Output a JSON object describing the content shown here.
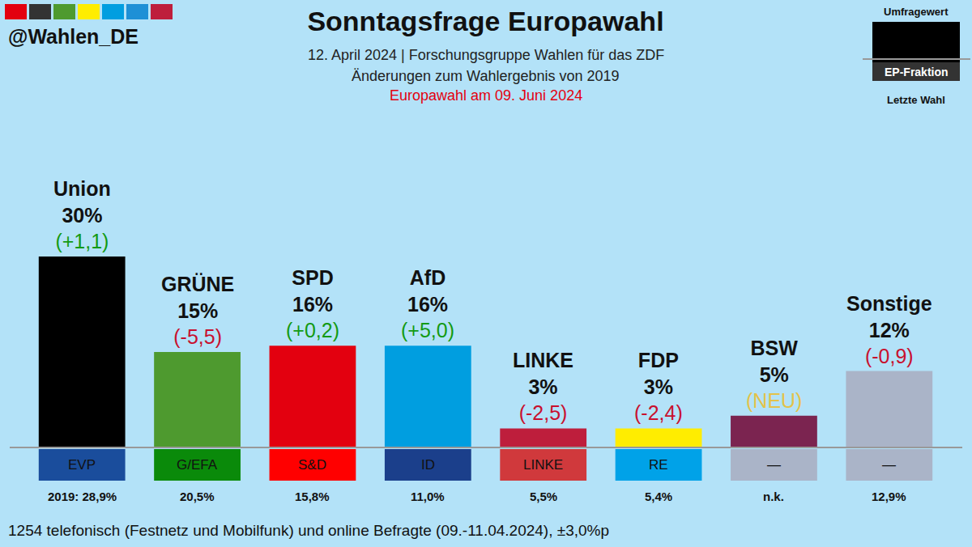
{
  "chart_data": {
    "type": "bar",
    "title": "Sonntagsfrage Europawahl",
    "handle": "@Wahlen_DE",
    "subtitle": [
      "12. April 2024 | Forschungsgruppe Wahlen für das ZDF",
      "Änderungen zum Wahlergebnis von 2019"
    ],
    "election_note": "Europawahl am 09. Juni 2024",
    "categories": [
      "Union",
      "GRÜNE",
      "SPD",
      "AfD",
      "LINKE",
      "FDP",
      "BSW",
      "Sonstige"
    ],
    "values": [
      30,
      15,
      16,
      16,
      3,
      3,
      5,
      12
    ],
    "value_labels": [
      "30%",
      "15%",
      "16%",
      "16%",
      "3%",
      "3%",
      "5%",
      "12%"
    ],
    "colors": [
      "#000000",
      "#4e9a2f",
      "#e3000f",
      "#009ee0",
      "#be1e3c",
      "#ffed00",
      "#7b2450",
      "#aab4c8"
    ],
    "changes": [
      "(+1,1)",
      "(-5,5)",
      "(+0,2)",
      "(+5,0)",
      "(-2,5)",
      "(-2,4)",
      "(NEU)",
      "(-0,9)"
    ],
    "change_colors": [
      "#139a13",
      "#c8102e",
      "#139a13",
      "#139a13",
      "#c8102e",
      "#c8102e",
      "#e3c24a",
      "#c8102e"
    ],
    "factions": [
      "EVP",
      "G/EFA",
      "S&D",
      "ID",
      "LINKE",
      "RE",
      "—",
      "—"
    ],
    "faction_colors": [
      "#1a4d9c",
      "#0a8a0a",
      "#ff0000",
      "#1b3f8b",
      "#d0393c",
      "#00a2e8",
      "#aab4c8",
      "#aab4c8"
    ],
    "last_results": [
      "2019: 28,9%",
      "20,5%",
      "15,8%",
      "11,0%",
      "5,5%",
      "5,4%",
      "n.k.",
      "12,9%"
    ],
    "key": {
      "value": "Umfragewert",
      "faction": "EP-Fraktion",
      "last": "Letzte Wahl"
    },
    "footnote": "1254 telefonisch (Festnetz und Mobilfunk) und online Befragte (09.-11.04.2024), ±3,0%p",
    "ylim": [
      0,
      30
    ],
    "yticks": [],
    "grid": false,
    "data_labels": true,
    "tick_labels": false
  }
}
